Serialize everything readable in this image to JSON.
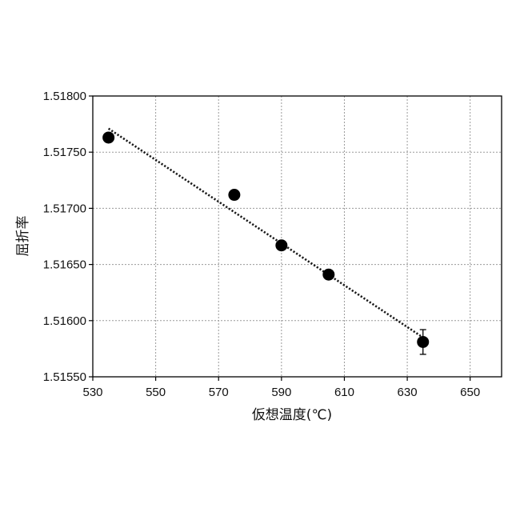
{
  "chart_data": {
    "type": "scatter",
    "title": "",
    "xlabel": "仮想温度(℃)",
    "ylabel": "屈折率",
    "xlim": [
      530,
      660
    ],
    "ylim": [
      1.5155,
      1.518
    ],
    "x_ticks": [
      530,
      550,
      570,
      590,
      610,
      630,
      650
    ],
    "x_tick_labels": [
      "530",
      "550",
      "570",
      "590",
      "610",
      "630",
      "650"
    ],
    "y_ticks": [
      1.5155,
      1.516,
      1.5165,
      1.517,
      1.5175,
      1.518
    ],
    "y_tick_labels": [
      "1.51550",
      "1.51600",
      "1.51650",
      "1.51700",
      "1.51750",
      "1.51800"
    ],
    "grid": true,
    "series": [
      {
        "points": [
          {
            "x": 535,
            "y": 1.51763
          },
          {
            "x": 575,
            "y": 1.51712
          },
          {
            "x": 590,
            "y": 1.51667
          },
          {
            "x": 605,
            "y": 1.51641
          },
          {
            "x": 635,
            "y": 1.51581,
            "yerr": 0.00011
          }
        ]
      }
    ],
    "trendline": {
      "type": "linear",
      "x": [
        535,
        635
      ],
      "y": [
        1.51771,
        1.51585
      ],
      "style": "dotted"
    },
    "colors": {
      "marker": "#000000",
      "trendline": "#1a1a1a",
      "grid": "#9a9a9a",
      "frame": "#000000"
    }
  }
}
